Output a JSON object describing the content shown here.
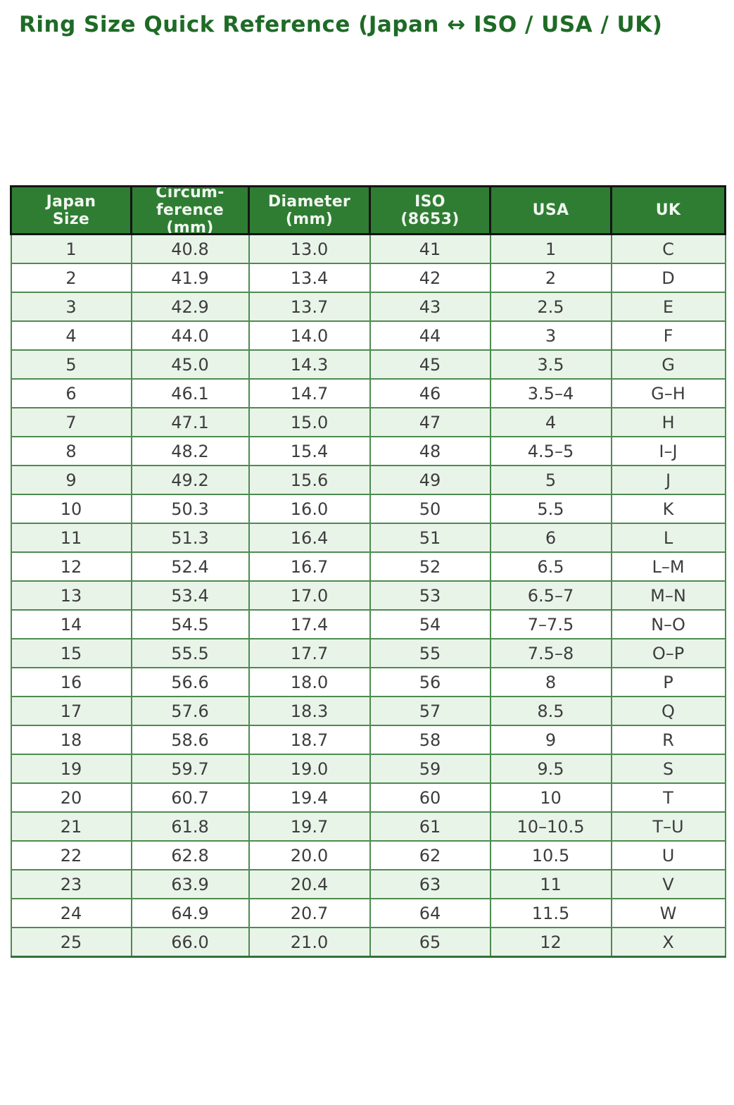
{
  "title": "Ring Size Quick Reference (Japan ↔ ISO / USA / UK)",
  "colors": {
    "title_text": "#1e6b26",
    "header_background": "#2f7d33",
    "header_text": "#f1f7f0",
    "header_border": "#141414",
    "body_border": "#4d8b4f",
    "row_stripe": "#e9f4e9",
    "row_plain": "#ffffff",
    "cell_text": "#3d3d3d"
  },
  "table": {
    "columns": [
      {
        "key": "japan-size",
        "label": "Japan Size",
        "lines": [
          "Japan",
          "Size"
        ]
      },
      {
        "key": "circumference-mm",
        "label": "Circum-ference (mm)",
        "lines": [
          "Circum-",
          "ference",
          "(mm)"
        ]
      },
      {
        "key": "diameter-mm",
        "label": "Diameter (mm)",
        "lines": [
          "Diameter",
          "(mm)"
        ]
      },
      {
        "key": "iso-8653",
        "label": "ISO (8653)",
        "lines": [
          "ISO",
          "(8653)"
        ]
      },
      {
        "key": "usa",
        "label": "USA",
        "lines": [
          "USA"
        ]
      },
      {
        "key": "uk",
        "label": "UK",
        "lines": [
          "UK"
        ]
      }
    ],
    "rows": [
      [
        "1",
        "40.8",
        "13.0",
        "41",
        "1",
        "C"
      ],
      [
        "2",
        "41.9",
        "13.4",
        "42",
        "2",
        "D"
      ],
      [
        "3",
        "42.9",
        "13.7",
        "43",
        "2.5",
        "E"
      ],
      [
        "4",
        "44.0",
        "14.0",
        "44",
        "3",
        "F"
      ],
      [
        "5",
        "45.0",
        "14.3",
        "45",
        "3.5",
        "G"
      ],
      [
        "6",
        "46.1",
        "14.7",
        "46",
        "3.5–4",
        "G–H"
      ],
      [
        "7",
        "47.1",
        "15.0",
        "47",
        "4",
        "H"
      ],
      [
        "8",
        "48.2",
        "15.4",
        "48",
        "4.5–5",
        "I–J"
      ],
      [
        "9",
        "49.2",
        "15.6",
        "49",
        "5",
        "J"
      ],
      [
        "10",
        "50.3",
        "16.0",
        "50",
        "5.5",
        "K"
      ],
      [
        "11",
        "51.3",
        "16.4",
        "51",
        "6",
        "L"
      ],
      [
        "12",
        "52.4",
        "16.7",
        "52",
        "6.5",
        "L–M"
      ],
      [
        "13",
        "53.4",
        "17.0",
        "53",
        "6.5–7",
        "M–N"
      ],
      [
        "14",
        "54.5",
        "17.4",
        "54",
        "7–7.5",
        "N–O"
      ],
      [
        "15",
        "55.5",
        "17.7",
        "55",
        "7.5–8",
        "O–P"
      ],
      [
        "16",
        "56.6",
        "18.0",
        "56",
        "8",
        "P"
      ],
      [
        "17",
        "57.6",
        "18.3",
        "57",
        "8.5",
        "Q"
      ],
      [
        "18",
        "58.6",
        "18.7",
        "58",
        "9",
        "R"
      ],
      [
        "19",
        "59.7",
        "19.0",
        "59",
        "9.5",
        "S"
      ],
      [
        "20",
        "60.7",
        "19.4",
        "60",
        "10",
        "T"
      ],
      [
        "21",
        "61.8",
        "19.7",
        "61",
        "10–10.5",
        "T–U"
      ],
      [
        "22",
        "62.8",
        "20.0",
        "62",
        "10.5",
        "U"
      ],
      [
        "23",
        "63.9",
        "20.4",
        "63",
        "11",
        "V"
      ],
      [
        "24",
        "64.9",
        "20.7",
        "64",
        "11.5",
        "W"
      ],
      [
        "25",
        "66.0",
        "21.0",
        "65",
        "12",
        "X"
      ]
    ]
  }
}
